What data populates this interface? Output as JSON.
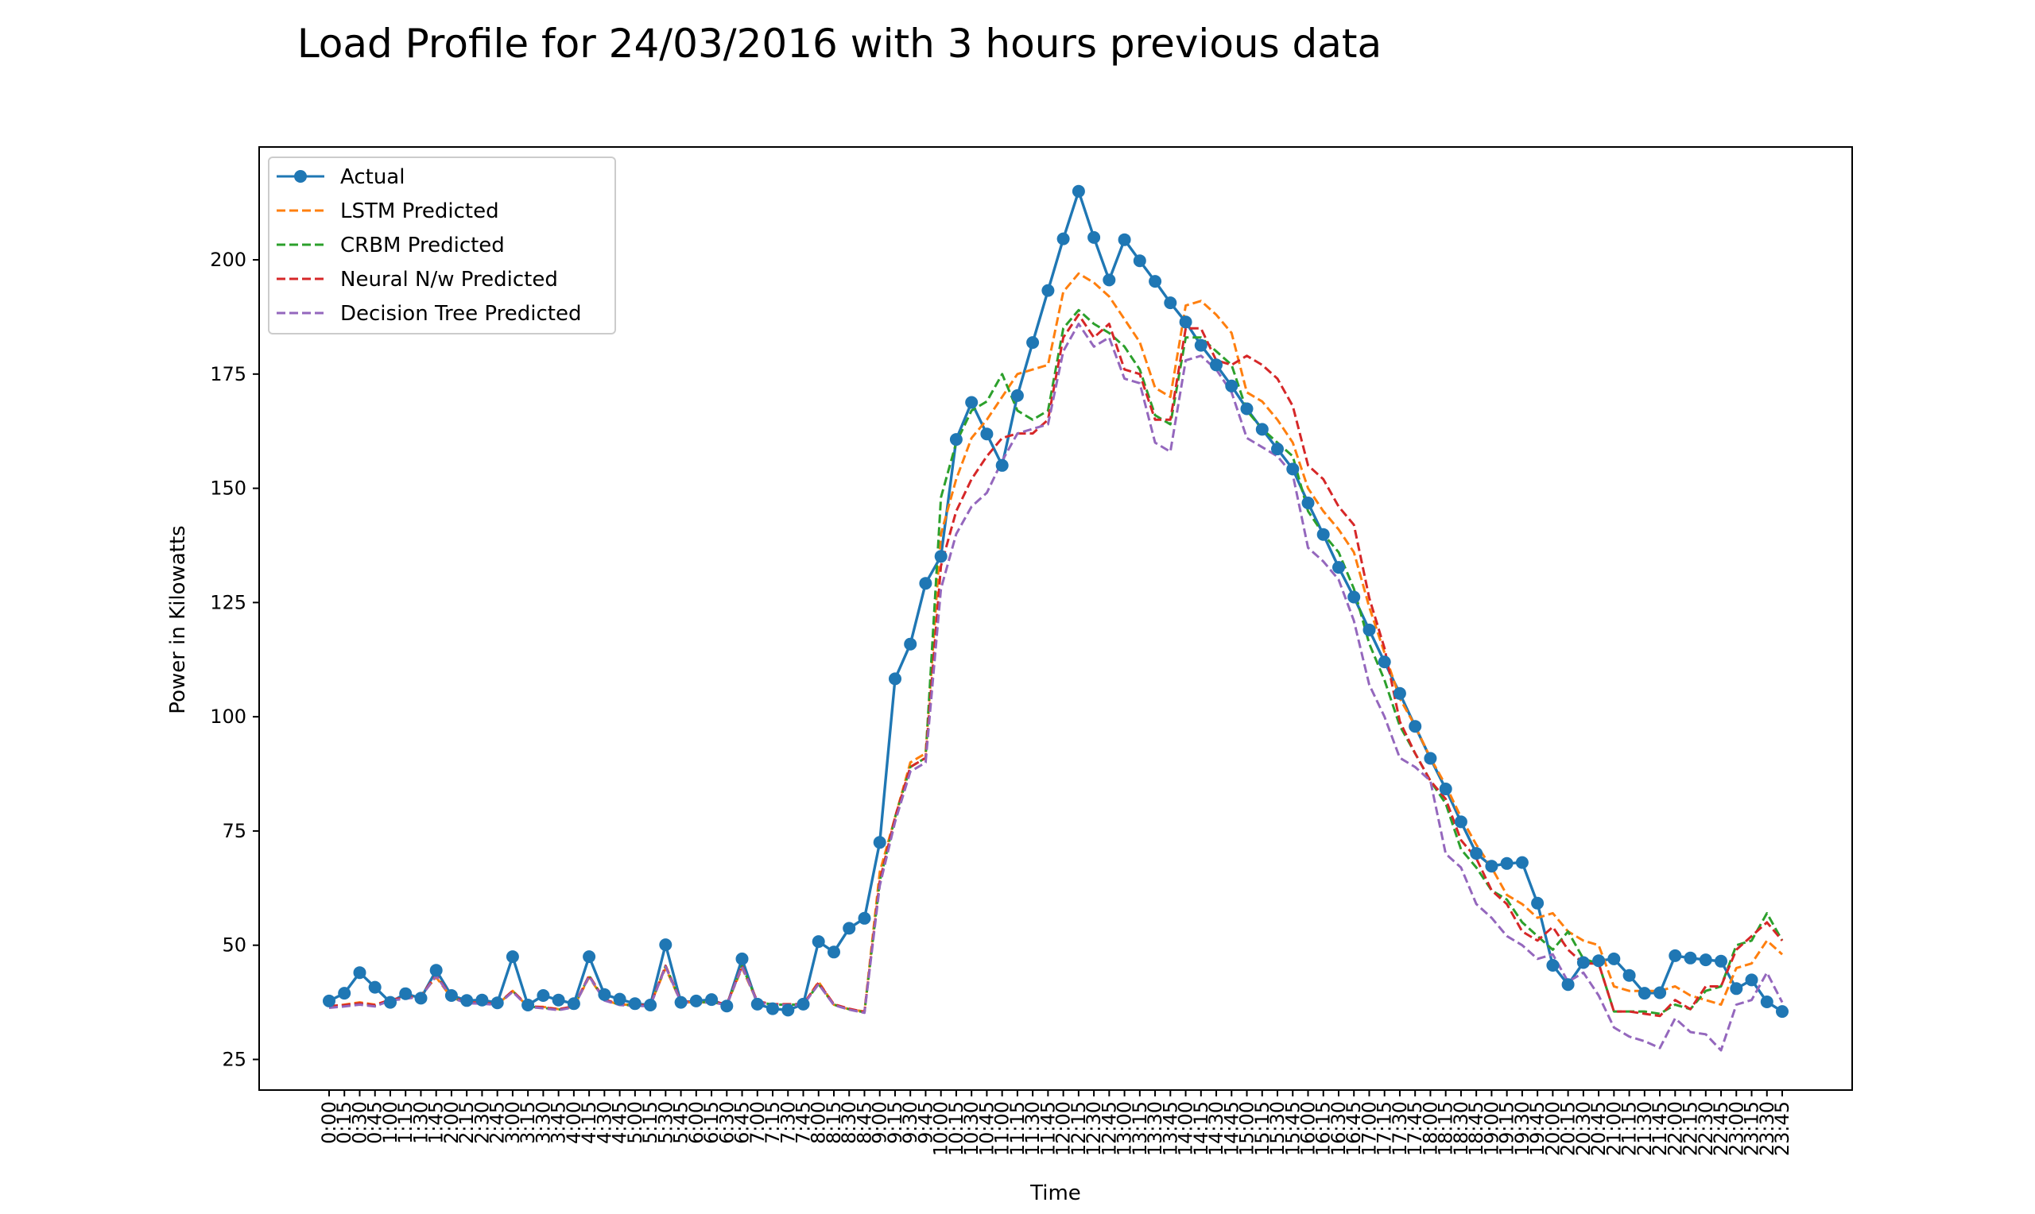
{
  "chart_data": {
    "type": "line",
    "title": "Load Profile for 24/03/2016 with 3 hours previous data",
    "xlabel": "Time",
    "ylabel": "Power in Kilowatts",
    "ylim": [
      18.3,
      224.7
    ],
    "yticks": [
      25,
      50,
      75,
      100,
      125,
      150,
      175,
      200
    ],
    "legend_position": "upper-left",
    "grid": false,
    "categories": [
      "0:00",
      "0:15",
      "0:30",
      "0:45",
      "1:00",
      "1:15",
      "1:30",
      "1:45",
      "2:00",
      "2:15",
      "2:30",
      "2:45",
      "3:00",
      "3:15",
      "3:30",
      "3:45",
      "4:00",
      "4:15",
      "4:30",
      "4:45",
      "5:00",
      "5:15",
      "5:30",
      "5:45",
      "6:00",
      "6:15",
      "6:30",
      "6:45",
      "7:00",
      "7:15",
      "7:30",
      "7:45",
      "8:00",
      "8:15",
      "8:30",
      "8:45",
      "9:00",
      "9:15",
      "9:30",
      "9:45",
      "10:00",
      "10:15",
      "10:30",
      "10:45",
      "11:00",
      "11:15",
      "11:30",
      "11:45",
      "12:00",
      "12:15",
      "12:30",
      "12:45",
      "13:00",
      "13:15",
      "13:30",
      "13:45",
      "14:00",
      "14:15",
      "14:30",
      "14:45",
      "15:00",
      "15:15",
      "15:30",
      "15:45",
      "16:00",
      "16:15",
      "16:30",
      "16:45",
      "17:00",
      "17:15",
      "17:30",
      "17:45",
      "18:00",
      "18:15",
      "18:30",
      "18:45",
      "19:00",
      "19:15",
      "19:30",
      "19:45",
      "20:00",
      "20:15",
      "20:30",
      "20:45",
      "21:00",
      "21:15",
      "21:30",
      "21:45",
      "22:00",
      "22:15",
      "22:30",
      "22:45",
      "23:00",
      "23:15",
      "23:30",
      "23:45"
    ],
    "series": [
      {
        "name": "Actual",
        "color": "#1f77b4",
        "style": "solid-marker",
        "values": [
          37.8,
          39.5,
          44.0,
          40.8,
          37.5,
          39.4,
          38.4,
          44.5,
          39.0,
          37.9,
          38.0,
          37.4,
          47.5,
          36.9,
          39.0,
          38.0,
          37.2,
          47.5,
          39.2,
          38.2,
          37.2,
          36.9,
          50.1,
          37.5,
          37.8,
          38.1,
          36.7,
          47.0,
          37.1,
          36.1,
          35.8,
          37.1,
          50.8,
          48.5,
          53.7,
          55.9,
          72.5,
          108.3,
          115.9,
          129.2,
          135.1,
          160.7,
          168.8,
          161.9,
          155.0,
          170.3,
          181.9,
          193.3,
          204.6,
          215.0,
          204.9,
          195.6,
          204.4,
          199.8,
          195.3,
          190.6,
          186.4,
          181.3,
          177.0,
          172.4,
          167.4,
          162.9,
          158.6,
          154.2,
          146.8,
          139.9,
          132.7,
          126.2,
          119.0,
          112.0,
          105.1,
          97.9,
          90.9,
          84.2,
          77.0,
          70.1,
          67.3,
          67.9,
          68.1,
          59.2,
          45.6,
          41.4,
          46.2,
          46.6,
          47.0,
          43.4,
          39.5,
          39.6,
          47.7,
          47.2,
          46.8,
          46.5,
          40.5,
          42.4,
          37.6,
          35.5
        ]
      },
      {
        "name": "LSTM Predicted",
        "color": "#ff7f0e",
        "style": "dashed",
        "values": [
          36.5,
          37.0,
          37.5,
          37.0,
          38.0,
          38.5,
          39.0,
          43.0,
          38.5,
          37.5,
          37.5,
          37.0,
          40.0,
          36.5,
          36.5,
          36.0,
          36.5,
          43.0,
          38.0,
          37.0,
          37.0,
          37.0,
          45.0,
          37.5,
          37.5,
          37.5,
          37.0,
          45.0,
          37.5,
          37.0,
          37.0,
          37.0,
          42.0,
          37.0,
          36.0,
          35.5,
          66.0,
          78.0,
          90.0,
          92.0,
          140.0,
          152.0,
          161.0,
          165.0,
          170.0,
          175.0,
          176.0,
          177.0,
          193.0,
          197.0,
          195.0,
          192.0,
          187.0,
          182.0,
          172.0,
          170.0,
          190.0,
          191.0,
          188.0,
          184.0,
          171.0,
          169.0,
          165.0,
          160.0,
          150.0,
          145.0,
          141.0,
          136.0,
          124.0,
          114.0,
          104.0,
          98.0,
          91.0,
          85.0,
          78.0,
          72.0,
          67.0,
          61.0,
          59.0,
          56.0,
          57.0,
          53.0,
          51.0,
          50.0,
          41.0,
          40.0,
          40.0,
          40.0,
          41.0,
          39.0,
          38.0,
          37.0,
          45.0,
          46.0,
          51.0,
          48.0
        ]
      },
      {
        "name": "CRBM Predicted",
        "color": "#2ca02c",
        "style": "dashed",
        "values": [
          36.5,
          36.8,
          37.2,
          36.8,
          38.0,
          38.4,
          38.8,
          43.5,
          38.6,
          37.4,
          37.3,
          37.0,
          40.0,
          36.6,
          36.3,
          35.9,
          36.5,
          43.3,
          38.0,
          37.0,
          36.8,
          36.8,
          45.5,
          37.6,
          37.5,
          37.6,
          37.0,
          45.5,
          37.6,
          37.0,
          37.0,
          37.0,
          41.5,
          37.0,
          36.0,
          35.3,
          64.0,
          78.0,
          89.0,
          91.0,
          148.0,
          160.0,
          167.0,
          169.0,
          175.0,
          167.0,
          165.0,
          167.0,
          185.0,
          189.0,
          186.0,
          184.0,
          181.0,
          176.0,
          166.0,
          164.0,
          183.0,
          183.0,
          180.0,
          177.0,
          167.0,
          163.0,
          160.0,
          157.0,
          145.0,
          140.0,
          136.0,
          128.0,
          116.0,
          108.0,
          98.0,
          92.0,
          86.0,
          81.0,
          71.0,
          67.0,
          62.0,
          60.0,
          55.0,
          52.0,
          49.0,
          53.0,
          47.0,
          46.0,
          35.5,
          35.5,
          35.5,
          35.0,
          37.0,
          36.0,
          40.0,
          41.0,
          50.0,
          51.0,
          57.0,
          51.0
        ]
      },
      {
        "name": "Neural N/w Predicted",
        "color": "#d62728",
        "style": "dashed",
        "values": [
          36.7,
          36.9,
          37.3,
          36.9,
          38.1,
          38.5,
          38.9,
          43.5,
          38.7,
          37.5,
          37.4,
          37.1,
          40.0,
          36.7,
          36.4,
          36.0,
          36.6,
          43.4,
          38.1,
          37.1,
          36.9,
          36.9,
          45.5,
          37.7,
          37.6,
          37.7,
          37.1,
          45.5,
          37.7,
          37.1,
          37.1,
          37.1,
          41.8,
          37.1,
          36.1,
          35.4,
          64.0,
          78.0,
          89.0,
          91.0,
          133.0,
          145.0,
          152.0,
          157.0,
          161.0,
          162.0,
          162.0,
          165.0,
          183.0,
          188.0,
          183.0,
          186.0,
          176.0,
          175.0,
          165.0,
          165.0,
          185.0,
          185.0,
          178.0,
          177.0,
          179.0,
          177.0,
          174.0,
          168.0,
          155.0,
          152.0,
          146.0,
          142.0,
          126.0,
          115.0,
          99.0,
          92.0,
          86.0,
          82.0,
          73.0,
          69.0,
          62.0,
          59.0,
          53.0,
          51.0,
          54.0,
          49.0,
          46.0,
          46.0,
          35.5,
          35.5,
          35.0,
          34.5,
          38.0,
          36.0,
          41.0,
          41.0,
          49.0,
          52.0,
          55.0,
          51.0
        ]
      },
      {
        "name": "Decision Tree Predicted",
        "color": "#9467bd",
        "style": "dashed",
        "values": [
          36.3,
          36.6,
          37.0,
          36.6,
          37.9,
          38.3,
          38.7,
          43.3,
          38.5,
          37.3,
          37.2,
          36.9,
          39.8,
          36.5,
          36.2,
          35.8,
          36.4,
          43.2,
          37.9,
          36.9,
          36.7,
          36.7,
          45.3,
          37.5,
          37.4,
          37.5,
          36.9,
          45.3,
          37.5,
          36.9,
          36.9,
          36.9,
          41.5,
          36.9,
          35.9,
          35.2,
          63.0,
          77.0,
          88.0,
          90.0,
          128.0,
          140.0,
          146.0,
          149.0,
          156.0,
          162.0,
          163.0,
          164.0,
          180.0,
          186.0,
          181.0,
          183.0,
          174.0,
          173.0,
          160.0,
          158.0,
          178.0,
          179.0,
          176.0,
          171.0,
          161.0,
          159.0,
          157.0,
          153.0,
          137.0,
          134.0,
          130.0,
          121.0,
          107.0,
          100.0,
          91.0,
          89.0,
          86.0,
          70.0,
          67.0,
          59.0,
          56.0,
          52.0,
          50.0,
          47.0,
          48.0,
          42.0,
          44.0,
          39.0,
          32.0,
          30.0,
          29.0,
          27.5,
          34.0,
          31.0,
          30.5,
          27.0,
          37.0,
          38.0,
          44.0,
          37.5
        ]
      }
    ]
  }
}
